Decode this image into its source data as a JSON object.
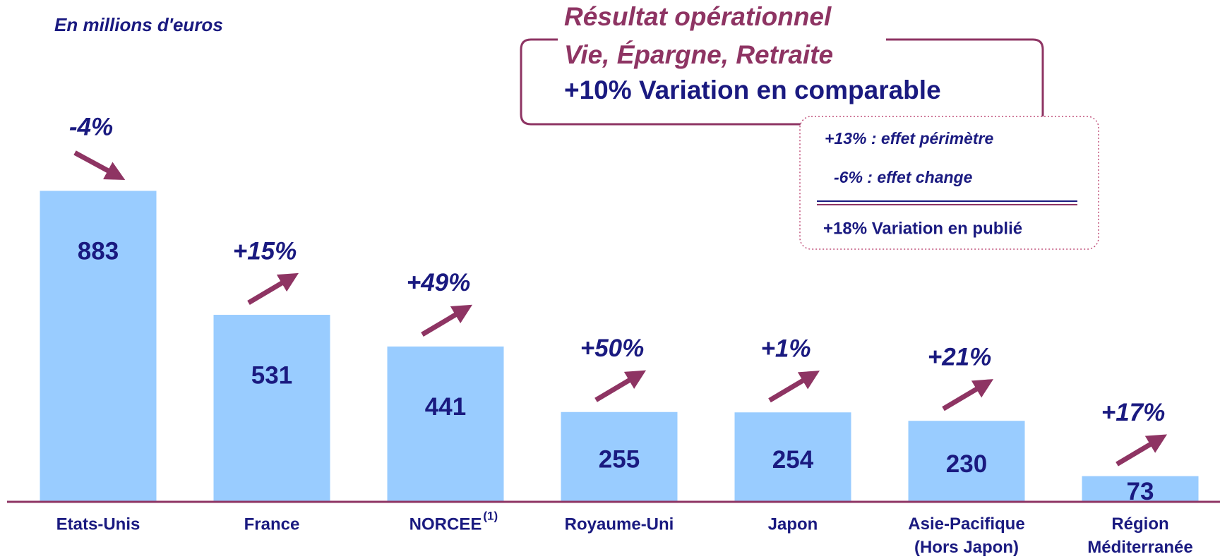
{
  "chart_data": {
    "type": "bar",
    "subtitle": "En millions d'euros",
    "title_lines": [
      "Résultat opérationnel",
      "Vie, Épargne, Retraite"
    ],
    "headline": "+10% Variation en comparable",
    "breakdown": [
      "+13% : effet périmètre",
      "-6% : effet change",
      "+18% Variation en publié"
    ],
    "categories": [
      "Etats-Unis",
      "France",
      "NORCEE",
      "Royaume-Uni",
      "Japon",
      "Asie-Pacifique\n(Hors Japon)",
      "Région\nMéditerranée"
    ],
    "category_notes": [
      null,
      null,
      "(1)",
      null,
      null,
      null,
      null
    ],
    "values": [
      883,
      531,
      441,
      255,
      254,
      230,
      73
    ],
    "changes": [
      "-4%",
      "+15%",
      "+49%",
      "+50%",
      "+1%",
      "+21%",
      "+17%"
    ],
    "color": "#99ccff",
    "ylim": [
      0,
      1000
    ]
  }
}
